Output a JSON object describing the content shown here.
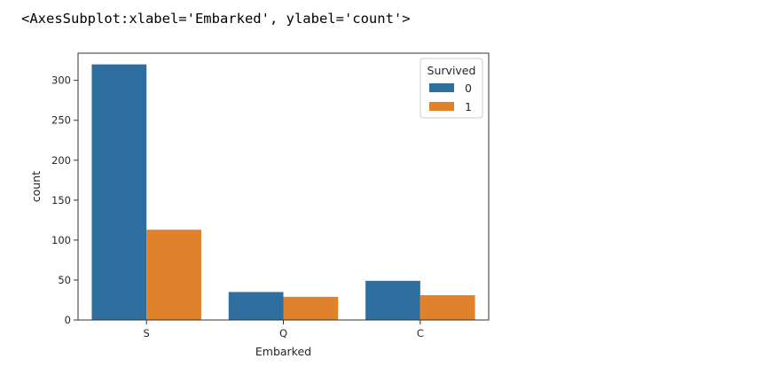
{
  "output": {
    "repr": "<AxesSubplot:xlabel='Embarked', ylabel='count'>"
  },
  "chart_data": {
    "type": "bar",
    "categories": [
      "S",
      "Q",
      "C"
    ],
    "series": [
      {
        "name": "0",
        "values": [
          320,
          35,
          49
        ],
        "color": "#2f6f9f"
      },
      {
        "name": "1",
        "values": [
          113,
          29,
          31
        ],
        "color": "#e1812c"
      }
    ],
    "xlabel": "Embarked",
    "ylabel": "count",
    "ylim": [
      0,
      334
    ],
    "yticks": [
      0,
      50,
      100,
      150,
      200,
      250,
      300
    ],
    "legend": {
      "title": "Survived",
      "placement": "top-right"
    },
    "grid": false
  }
}
